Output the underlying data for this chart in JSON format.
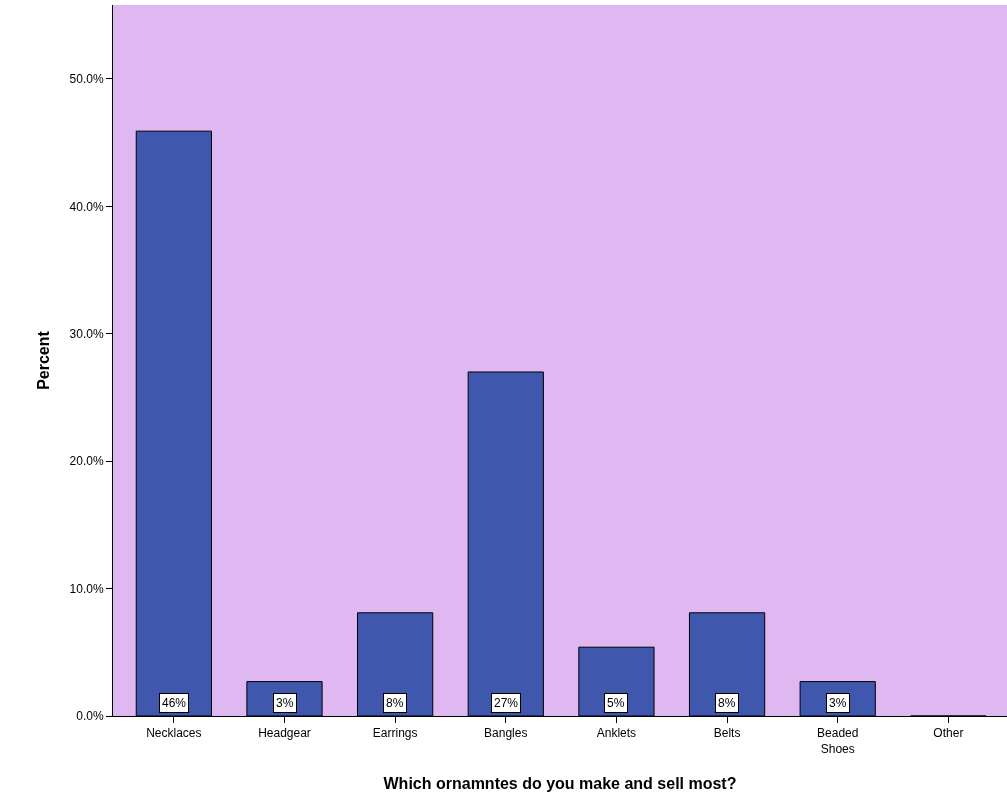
{
  "chart_data": {
    "type": "bar",
    "xlabel": "Which ornamntes do you make and sell most?",
    "ylabel": "Percent",
    "categories": [
      "Necklaces",
      "Headgear",
      "Earrings",
      "Bangles",
      "Anklets",
      "Belts",
      "Beaded Shoes",
      "Other"
    ],
    "values": [
      45.9,
      2.7,
      8.1,
      27.0,
      5.4,
      8.1,
      2.7,
      0
    ],
    "value_labels": [
      "46%",
      "3%",
      "8%",
      "27%",
      "5%",
      "8%",
      "3%",
      null
    ],
    "color": "#3f58ad",
    "ylim": [
      0,
      55.8
    ],
    "yticks": [
      {
        "value": 0,
        "label": "0.0%"
      },
      {
        "value": 10,
        "label": "10.0%"
      },
      {
        "value": 20,
        "label": "20.0%"
      },
      {
        "value": 30,
        "label": "30.0%"
      },
      {
        "value": 40,
        "label": "40.0%"
      },
      {
        "value": 50,
        "label": "50.0%"
      }
    ],
    "legend": false
  }
}
